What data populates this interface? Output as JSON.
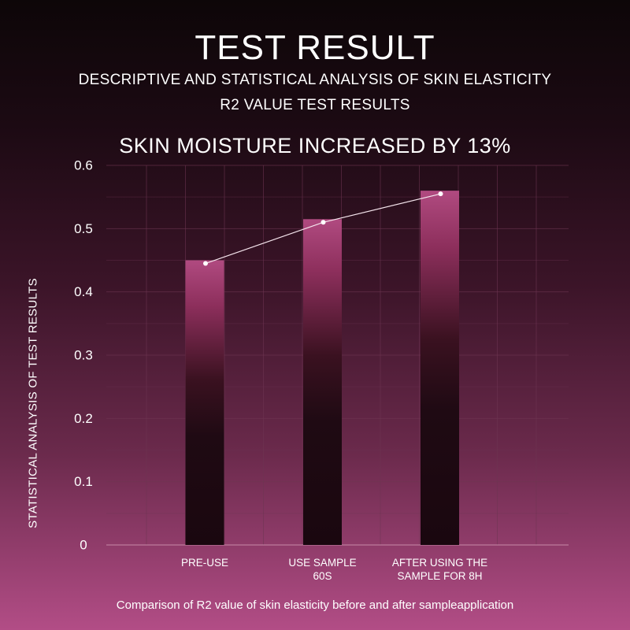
{
  "header": {
    "title": "TEST RESULT",
    "subtitle_line1": "DESCRIPTIVE AND STATISTICAL ANALYSIS OF SKIN ELASTICITY",
    "subtitle_line2": "R2 VALUE TEST RESULTS",
    "headline": "SKIN MOISTURE INCREASED BY 13%"
  },
  "caption": "Comparison of R2 value of skin elasticity before and after sampleapplication",
  "chart_data": {
    "type": "bar",
    "ylabel": "STATISTICAL ANALYSIS OF TEST RESULTS",
    "xlabel": "",
    "ylim": [
      0,
      0.6
    ],
    "yticks": [
      "0",
      "0.1",
      "0.2",
      "0.3",
      "0.4",
      "0.5",
      "0.6"
    ],
    "categories": [
      [
        "PRE-USE"
      ],
      [
        "USE SAMPLE",
        "60S"
      ],
      [
        "AFTER USING THE",
        "SAMPLE FOR 8H"
      ]
    ],
    "values": [
      0.45,
      0.515,
      0.56
    ],
    "line_overlay": [
      0.445,
      0.51,
      0.555
    ],
    "grid": true,
    "colors": {
      "bar_top": "#b04a80",
      "bar_bottom": "#1a070f",
      "line": "#f4e4ec",
      "grid": "#6e3552"
    }
  }
}
